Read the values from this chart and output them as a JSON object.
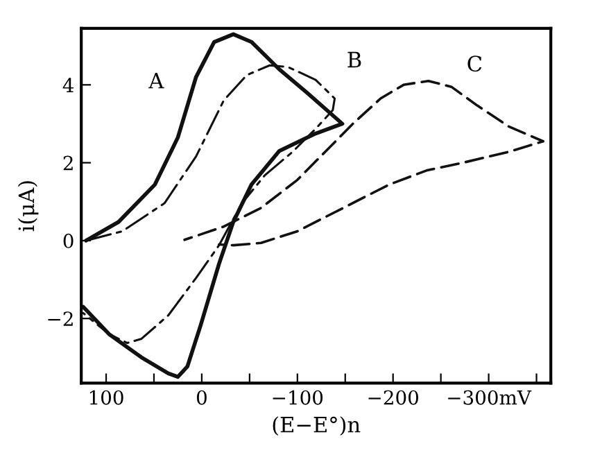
{
  "chart_data": {
    "type": "line",
    "xlabel": "(E−E°)n",
    "ylabel": "i(μA)",
    "xlim": [
      126,
      -365
    ],
    "ylim": [
      -3.66,
      5.45
    ],
    "xticks": [
      {
        "value": 100,
        "label": "100"
      },
      {
        "value": 50,
        "label": null
      },
      {
        "value": 0,
        "label": "0"
      },
      {
        "value": -50,
        "label": null
      },
      {
        "value": -100,
        "label": "−100"
      },
      {
        "value": -150,
        "label": null
      },
      {
        "value": -200,
        "label": "−200"
      },
      {
        "value": -250,
        "label": null
      },
      {
        "value": -300,
        "label": "−300mV"
      },
      {
        "value": -350,
        "label": null
      }
    ],
    "yticks": [
      {
        "value": 4,
        "label": "4"
      },
      {
        "value": 2,
        "label": "2"
      },
      {
        "value": 0,
        "label": "0"
      },
      {
        "value": -2,
        "label": "−2"
      }
    ],
    "grid": false,
    "legend": false,
    "marker": "none",
    "series": [
      {
        "name": "A",
        "color": "#111111",
        "line_style": "solid",
        "x": [
          121,
          87,
          49,
          25,
          6,
          -13,
          -33,
          -52,
          -81,
          -110,
          -147,
          -119,
          -81,
          -52,
          -33,
          -18,
          1,
          15,
          25,
          35,
          63,
          97,
          124
        ],
        "values": [
          0,
          0.48,
          1.44,
          2.65,
          4.2,
          5.1,
          5.3,
          5.1,
          4.4,
          3.8,
          3.0,
          2.75,
          2.3,
          1.44,
          0.48,
          -0.6,
          -2.16,
          -3.23,
          -3.5,
          -3.41,
          -3.0,
          -2.4,
          -1.7
        ]
      },
      {
        "name": "B",
        "color": "#111111",
        "line_style": "dashdot",
        "x": [
          121,
          83,
          39,
          6,
          -23,
          -47,
          -71,
          -90,
          -119,
          -139,
          -137,
          -119,
          -95,
          -66,
          -42,
          -18,
          6,
          35,
          63,
          78,
          97,
          124
        ],
        "values": [
          0,
          0.24,
          0.96,
          2.16,
          3.6,
          4.25,
          4.5,
          4.46,
          4.13,
          3.65,
          3.35,
          2.87,
          2.28,
          1.68,
          0.96,
          -0.12,
          -0.96,
          -1.92,
          -2.52,
          -2.63,
          -2.4,
          -1.86
        ]
      },
      {
        "name": "C",
        "color": "#111111",
        "line_style": "dashed",
        "x": [
          18,
          -23,
          -62,
          -100,
          -129,
          -158,
          -187,
          -211,
          -237,
          -261,
          -288,
          -321,
          -357,
          -321,
          -273,
          -235,
          -196,
          -148,
          -100,
          -62,
          -33,
          -18
        ],
        "values": [
          0.02,
          0.36,
          0.84,
          1.56,
          2.28,
          3.0,
          3.65,
          4.0,
          4.1,
          3.95,
          3.47,
          2.93,
          2.55,
          2.28,
          2.0,
          1.8,
          1.44,
          0.84,
          0.24,
          -0.06,
          -0.12,
          -0.1
        ]
      }
    ]
  }
}
